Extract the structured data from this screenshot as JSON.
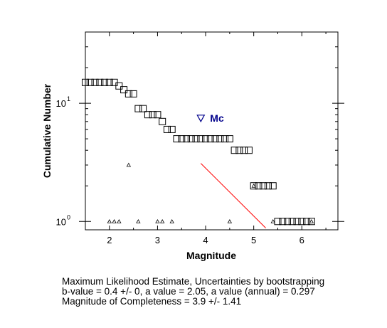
{
  "chart_data": {
    "type": "scatter",
    "xlabel": "Magnitude",
    "ylabel": "Cumulative Number",
    "xlim": [
      1.5,
      6.75
    ],
    "ylim": [
      0.85,
      40
    ],
    "y_scale": "log",
    "x_ticks": [
      2,
      3,
      4,
      5,
      6
    ],
    "y_ticks": [
      {
        "value": 1,
        "label": "10",
        "exp": "0"
      },
      {
        "value": 10,
        "label": "10",
        "exp": "1"
      }
    ],
    "cumulative": {
      "marker": "square",
      "x": [
        1.5,
        1.6,
        1.7,
        1.8,
        1.9,
        2.0,
        2.1,
        2.2,
        2.3,
        2.4,
        2.5,
        2.6,
        2.7,
        2.8,
        2.9,
        3.0,
        3.1,
        3.2,
        3.3,
        3.4,
        3.5,
        3.6,
        3.7,
        3.8,
        3.9,
        4.0,
        4.1,
        4.2,
        4.3,
        4.4,
        4.5,
        4.6,
        4.7,
        4.8,
        4.9,
        5.0,
        5.1,
        5.2,
        5.3,
        5.4,
        5.5,
        5.6,
        5.7,
        5.8,
        5.9,
        6.0,
        6.1,
        6.2
      ],
      "y": [
        15,
        15,
        15,
        15,
        15,
        15,
        15,
        14,
        13,
        12,
        12,
        9,
        9,
        8,
        8,
        8,
        7,
        6,
        6,
        5,
        5,
        5,
        5,
        5,
        5,
        5,
        5,
        5,
        5,
        5,
        5,
        4,
        4,
        4,
        4,
        2,
        2,
        2,
        2,
        2,
        1,
        1,
        1,
        1,
        1,
        1,
        1,
        1
      ]
    },
    "noncumulative": {
      "marker": "triangle",
      "x": [
        2.0,
        2.1,
        2.2,
        2.4,
        2.6,
        3.0,
        3.1,
        3.3,
        4.5,
        5.0,
        5.4,
        6.2
      ],
      "y": [
        1,
        1,
        1,
        3,
        1,
        1,
        1,
        1,
        1,
        2,
        1,
        1
      ]
    },
    "mc_marker": {
      "x": 3.9,
      "y": 7.5,
      "label": "Mc"
    },
    "fit_line": {
      "x": [
        3.9,
        5.25
      ],
      "y": [
        3.1,
        0.88
      ],
      "color": "#ff0000"
    }
  },
  "caption": {
    "line1": "Maximum Likelihood Estimate, Uncertainties by bootstrapping",
    "line2": "b-value = 0.4 +/- 0,  a value = 2.05,  a value (annual) = 0.297",
    "line3": "Magnitude of Completeness = 3.9 +/- 1.41"
  }
}
